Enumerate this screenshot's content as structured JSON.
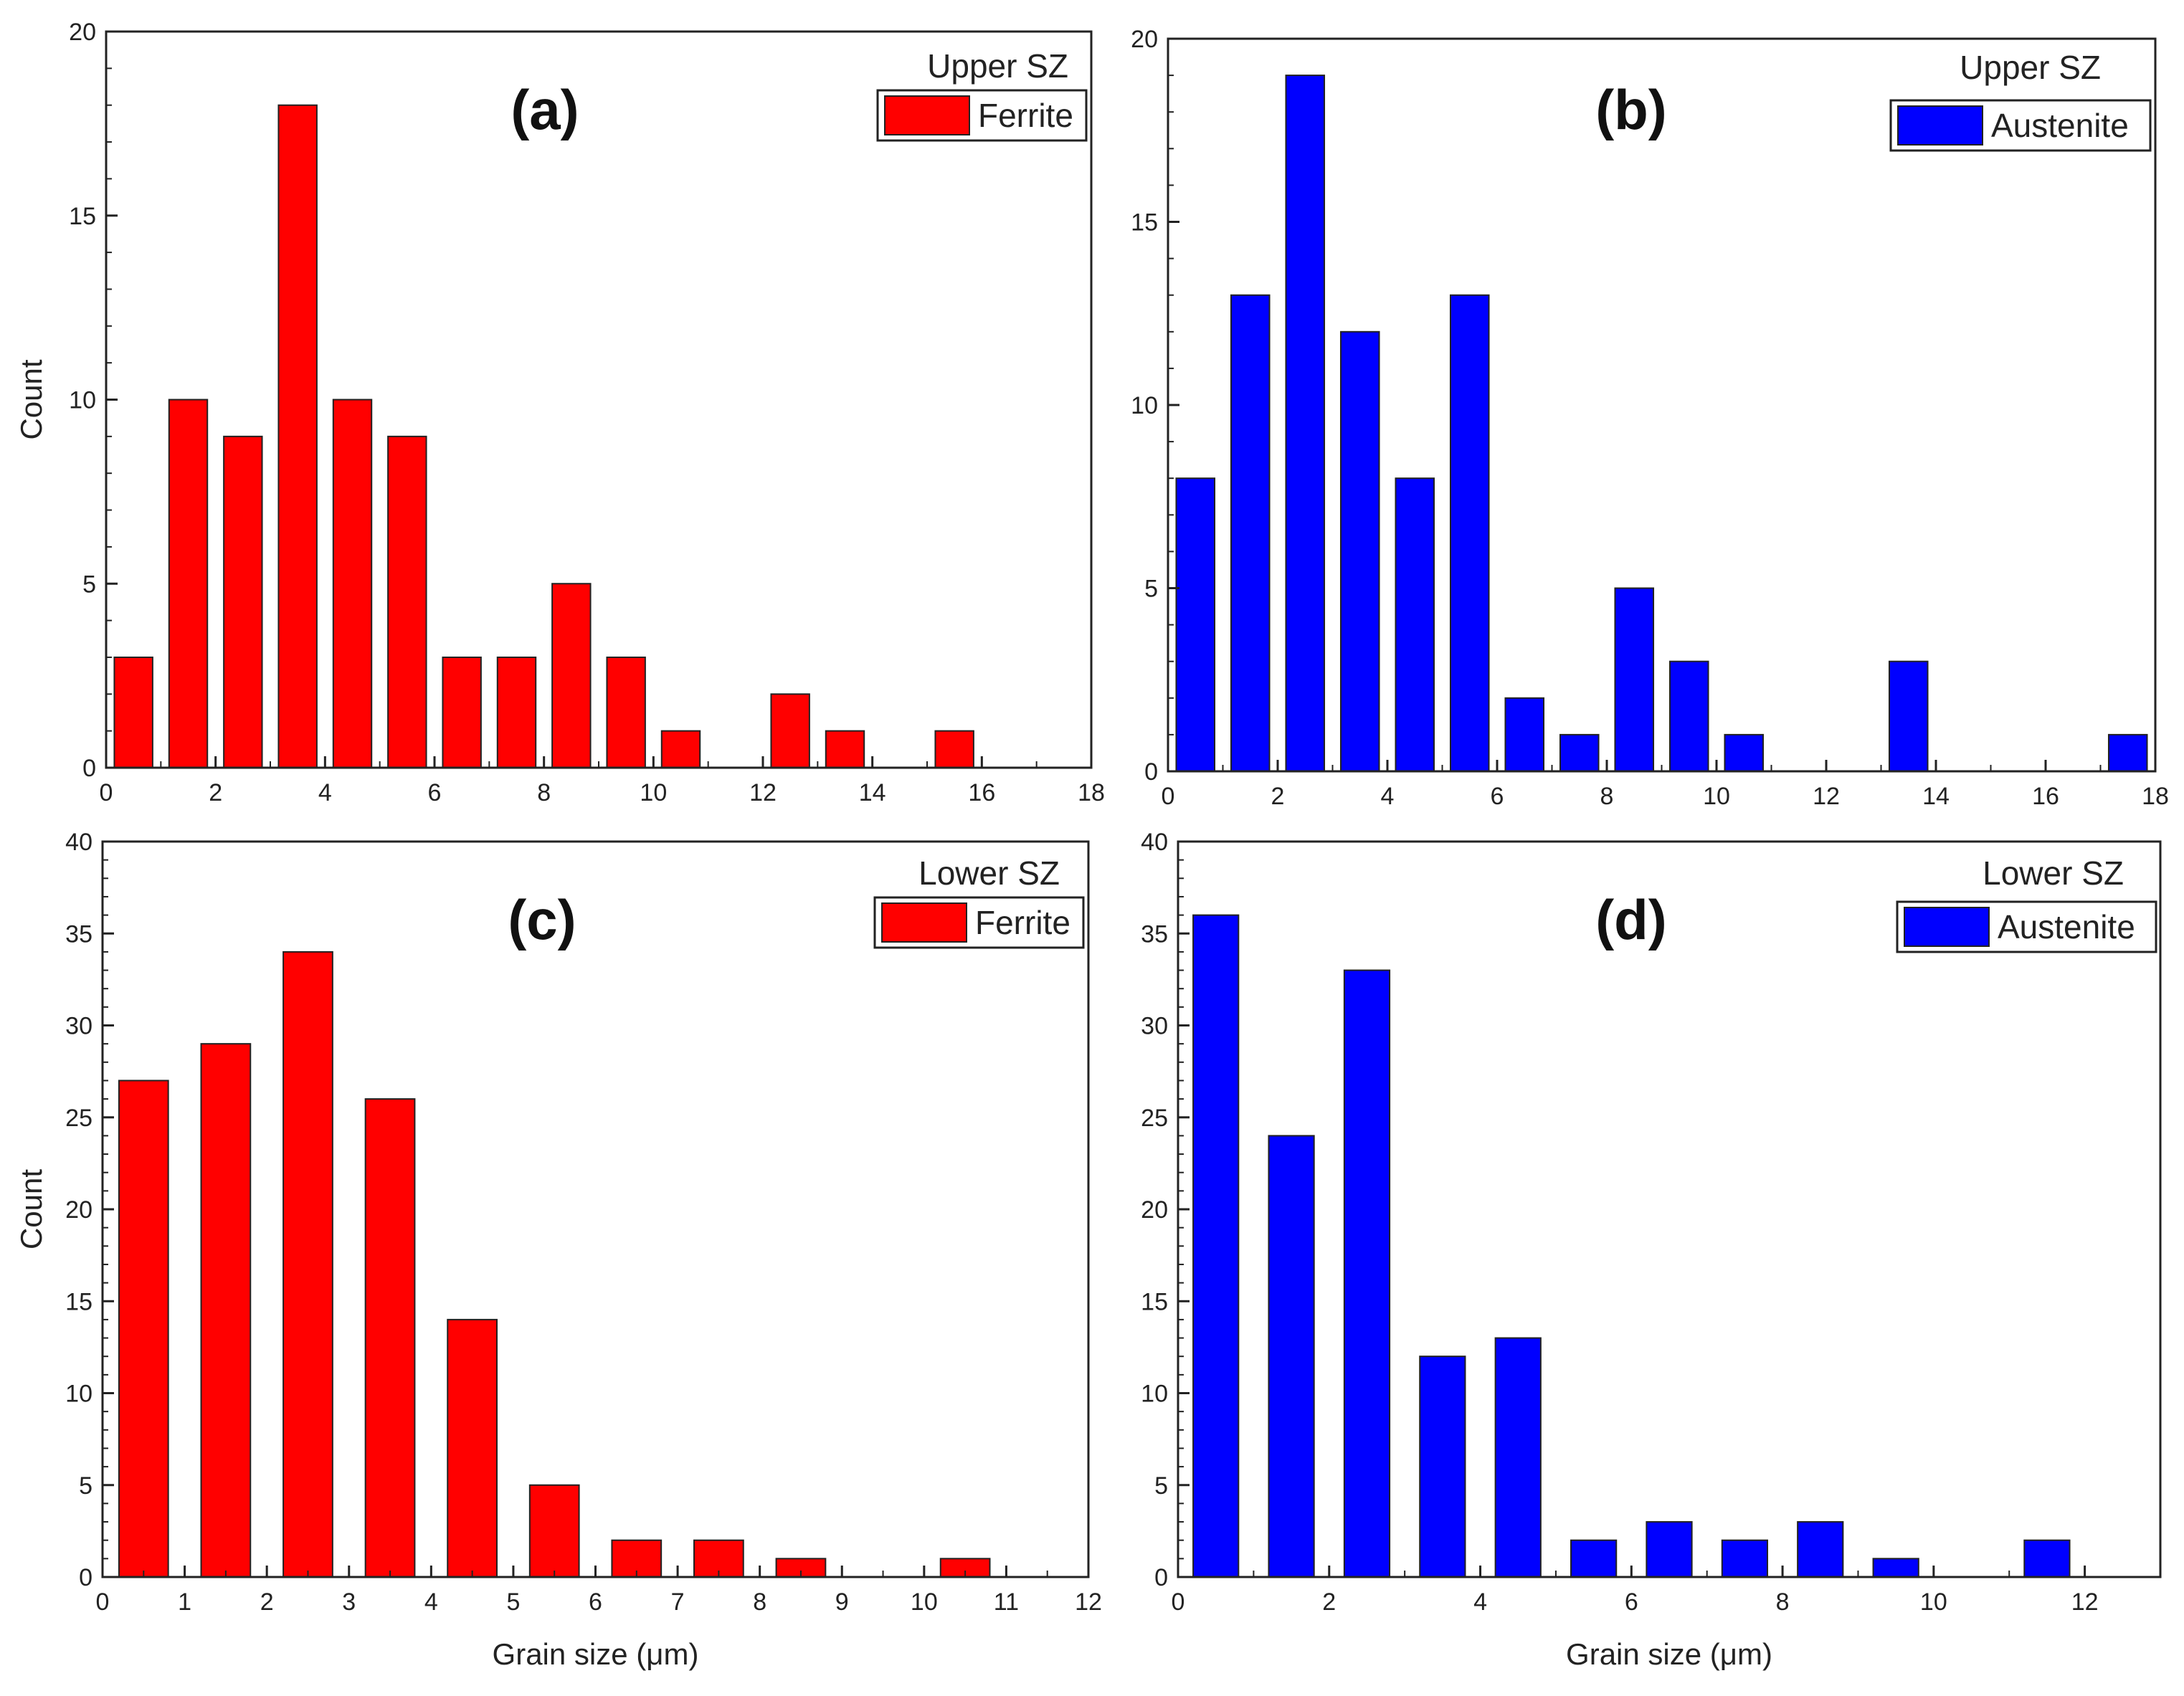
{
  "figure": {
    "colors": {
      "ferrite": "#ff0000",
      "austenite": "#0000ff",
      "axis": "#222222"
    }
  },
  "chart_data": [
    {
      "type": "bar",
      "panel": "(a)",
      "legend_title": "Upper SZ",
      "series_name": "Ferrite",
      "color": "#ff0000",
      "xlabel": "",
      "ylabel": "Count",
      "xlim": [
        0,
        18
      ],
      "ylim": [
        0,
        20
      ],
      "xticks": [
        0,
        2,
        4,
        6,
        8,
        10,
        12,
        14,
        16,
        18
      ],
      "yticks": [
        0,
        5,
        10,
        15,
        20
      ],
      "bin_width": 1,
      "bar_width": 0.7,
      "bins": [
        0.5,
        1.5,
        2.5,
        3.5,
        4.5,
        5.5,
        6.5,
        7.5,
        8.5,
        9.5,
        10.5,
        11.5,
        12.5,
        13.5,
        14.5,
        15.5,
        16.5,
        17.5
      ],
      "values": [
        3,
        10,
        9,
        18,
        10,
        9,
        3,
        3,
        5,
        3,
        1,
        0,
        2,
        1,
        0,
        1,
        0,
        0
      ]
    },
    {
      "type": "bar",
      "panel": "(b)",
      "legend_title": "Upper SZ",
      "series_name": "Austenite",
      "color": "#0000ff",
      "xlabel": "",
      "ylabel": "",
      "xlim": [
        0,
        18
      ],
      "ylim": [
        0,
        20
      ],
      "xticks": [
        0,
        2,
        4,
        6,
        8,
        10,
        12,
        14,
        16,
        18
      ],
      "yticks": [
        0,
        5,
        10,
        15,
        20
      ],
      "bin_width": 1,
      "bar_width": 0.7,
      "bins": [
        0.5,
        1.5,
        2.5,
        3.5,
        4.5,
        5.5,
        6.5,
        7.5,
        8.5,
        9.5,
        10.5,
        11.5,
        12.5,
        13.5,
        14.5,
        15.5,
        16.5,
        17.5
      ],
      "values": [
        8,
        13,
        19,
        12,
        8,
        13,
        2,
        1,
        5,
        3,
        1,
        0,
        0,
        3,
        0,
        0,
        0,
        1
      ]
    },
    {
      "type": "bar",
      "panel": "(c)",
      "legend_title": "Lower SZ",
      "series_name": "Ferrite",
      "color": "#ff0000",
      "xlabel": "Grain size (μm)",
      "ylabel": "Count",
      "xlim": [
        0,
        12
      ],
      "ylim": [
        0,
        40
      ],
      "xticks": [
        0,
        1,
        2,
        3,
        4,
        5,
        6,
        7,
        8,
        9,
        10,
        11,
        12
      ],
      "yticks": [
        0,
        5,
        10,
        15,
        20,
        25,
        30,
        35,
        40
      ],
      "bin_width": 1,
      "bar_width": 0.6,
      "bins": [
        0.5,
        1.5,
        2.5,
        3.5,
        4.5,
        5.5,
        6.5,
        7.5,
        8.5,
        9.5,
        10.5,
        11.5
      ],
      "values": [
        27,
        29,
        34,
        26,
        14,
        5,
        2,
        2,
        1,
        0,
        1,
        0
      ]
    },
    {
      "type": "bar",
      "panel": "(d)",
      "legend_title": "Lower SZ",
      "series_name": "Austenite",
      "color": "#0000ff",
      "xlabel": "Grain size (μm)",
      "ylabel": "",
      "xlim": [
        0,
        13
      ],
      "ylim": [
        0,
        40
      ],
      "xticks": [
        0,
        2,
        4,
        6,
        8,
        10,
        12
      ],
      "yticks": [
        0,
        5,
        10,
        15,
        20,
        25,
        30,
        35,
        40
      ],
      "bin_width": 1,
      "bar_width": 0.6,
      "bins": [
        0.5,
        1.5,
        2.5,
        3.5,
        4.5,
        5.5,
        6.5,
        7.5,
        8.5,
        9.5,
        10.5,
        11.5
      ],
      "values": [
        36,
        24,
        33,
        12,
        13,
        2,
        3,
        2,
        3,
        1,
        0,
        2
      ]
    }
  ]
}
